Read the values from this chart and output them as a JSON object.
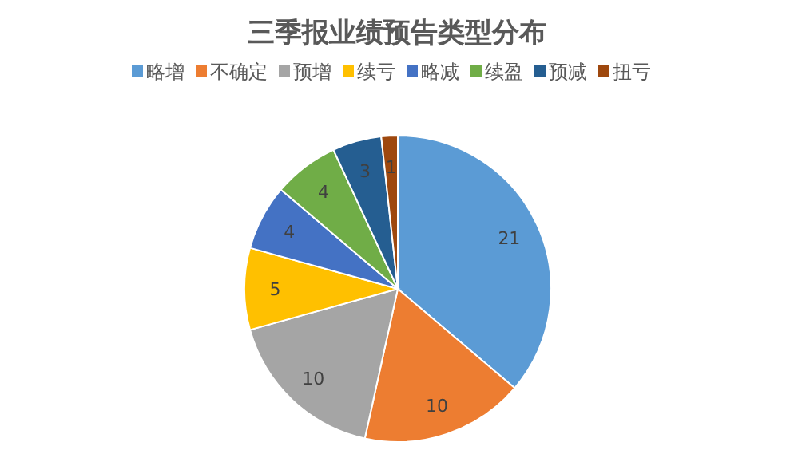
{
  "chart_data": {
    "type": "pie",
    "title": "三季报业绩预告类型分布",
    "categories": [
      "略增",
      "不确定",
      "预增",
      "续亏",
      "略减",
      "续盈",
      "预减",
      "扭亏"
    ],
    "values": [
      21,
      10,
      10,
      5,
      4,
      4,
      3,
      1
    ],
    "colors": [
      "#5b9bd5",
      "#ed7d31",
      "#a5a5a5",
      "#ffc000",
      "#4472c4",
      "#70ad47",
      "#255e91",
      "#9e480e"
    ],
    "data_labels": true,
    "legend": "top"
  }
}
